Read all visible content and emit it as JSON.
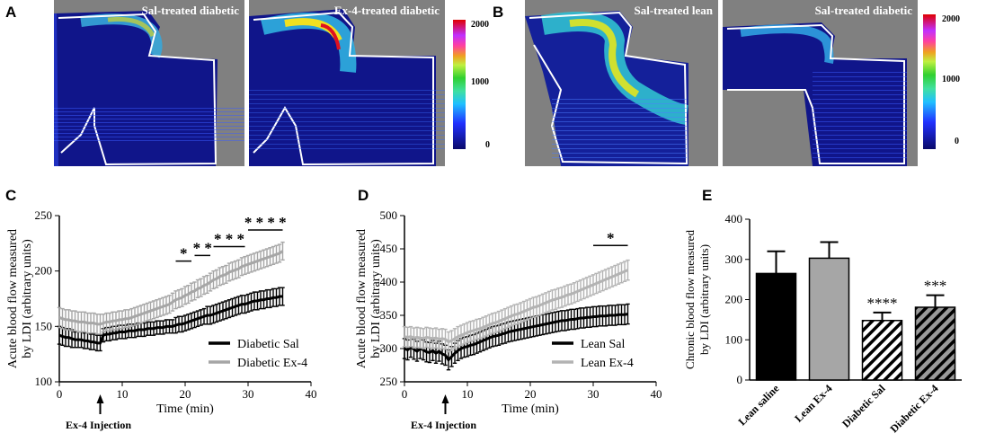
{
  "panel_letters": {
    "a": "A",
    "b": "B",
    "c": "C",
    "d": "D",
    "e": "E"
  },
  "images": {
    "a_left": "Sal-treated diabetic",
    "a_right": "Ex-4-treated diabetic",
    "b_left": "Sal-treated lean",
    "b_right": "Sal-treated diabetic"
  },
  "colorbar": {
    "max_label": "2000",
    "mid_label": "1000",
    "min_label": "0"
  },
  "chart_data": [
    {
      "id": "C",
      "type": "line",
      "xlabel": "Time (min)",
      "ylabel_lines": [
        "Acute blood flow measured",
        "by LDI (arbitrary units)"
      ],
      "xlim": [
        0,
        40
      ],
      "ylim": [
        100,
        250
      ],
      "xticks": [
        "0",
        "10",
        "20",
        "30",
        "40"
      ],
      "yticks": [
        "100",
        "150",
        "200",
        "250"
      ],
      "annotation": "Ex-4 Injection",
      "annotation_x": 6.5,
      "legend": [
        "Diabetic Sal",
        "Diabetic Ex-4"
      ],
      "significance": [
        {
          "label": "*",
          "x1": 18.5,
          "x2": 21,
          "y": 209
        },
        {
          "label": "* *",
          "x1": 21.5,
          "x2": 24,
          "y": 214
        },
        {
          "label": "* * *",
          "x1": 24.5,
          "x2": 29.5,
          "y": 222
        },
        {
          "label": "* * * *",
          "x1": 30,
          "x2": 35.5,
          "y": 237
        }
      ],
      "series": [
        {
          "name": "Diabetic Sal",
          "color": "#000000",
          "x": [
            0,
            0.5,
            1,
            1.5,
            2,
            2.5,
            3,
            3.5,
            4,
            4.5,
            5,
            5.5,
            6,
            6.5,
            7,
            7.5,
            8,
            8.5,
            9,
            9.5,
            10,
            10.5,
            11,
            11.5,
            12,
            12.5,
            13,
            13.5,
            14,
            14.5,
            15,
            15.5,
            16,
            16.5,
            17,
            17.5,
            18,
            18.5,
            19,
            19.5,
            20,
            20.5,
            21,
            21.5,
            22,
            22.5,
            23,
            23.5,
            24,
            24.5,
            25,
            25.5,
            26,
            26.5,
            27,
            27.5,
            28,
            28.5,
            29,
            29.5,
            30,
            30.5,
            31,
            31.5,
            32,
            32.5,
            33,
            33.5,
            34,
            34.5,
            35,
            35.5
          ],
          "y": [
            142,
            141,
            140,
            140,
            139,
            138,
            138,
            138,
            137,
            137,
            136,
            136,
            135,
            135,
            142,
            143,
            143,
            144,
            144,
            145,
            145,
            145,
            146,
            146,
            146,
            147,
            147,
            147,
            148,
            148,
            148,
            149,
            149,
            149,
            150,
            150,
            150,
            151,
            152,
            152,
            153,
            154,
            155,
            156,
            157,
            158,
            159,
            160,
            160,
            161,
            162,
            163,
            164,
            165,
            166,
            167,
            168,
            169,
            170,
            170,
            171,
            172,
            173,
            173,
            174,
            174,
            175,
            175,
            176,
            176,
            177,
            177
          ],
          "err": [
            8,
            8,
            8,
            8,
            8,
            7,
            7,
            7,
            7,
            7,
            7,
            7,
            7,
            7,
            6,
            6,
            6,
            6,
            6,
            6,
            6,
            6,
            6,
            6,
            6,
            6,
            6,
            6,
            6,
            6,
            6,
            6,
            6,
            6,
            6,
            6,
            6,
            7,
            7,
            7,
            7,
            7,
            7,
            7,
            7,
            7,
            7,
            8,
            8,
            8,
            8,
            8,
            8,
            8,
            8,
            8,
            8,
            8,
            8,
            8,
            8,
            8,
            8,
            8,
            8,
            8,
            8,
            8,
            8,
            8,
            8,
            8
          ]
        },
        {
          "name": "Diabetic Ex-4",
          "color": "#a6a6a6",
          "x": [
            0,
            0.5,
            1,
            1.5,
            2,
            2.5,
            3,
            3.5,
            4,
            4.5,
            5,
            5.5,
            6,
            6.5,
            7,
            7.5,
            8,
            8.5,
            9,
            9.5,
            10,
            10.5,
            11,
            11.5,
            12,
            12.5,
            13,
            13.5,
            14,
            14.5,
            15,
            15.5,
            16,
            16.5,
            17,
            17.5,
            18,
            18.5,
            19,
            19.5,
            20,
            20.5,
            21,
            21.5,
            22,
            22.5,
            23,
            23.5,
            24,
            24.5,
            25,
            25.5,
            26,
            26.5,
            27,
            27.5,
            28,
            28.5,
            29,
            29.5,
            30,
            30.5,
            31,
            31.5,
            32,
            32.5,
            33,
            33.5,
            34,
            34.5,
            35,
            35.5
          ],
          "y": [
            158,
            157,
            156,
            156,
            155,
            155,
            154,
            154,
            154,
            153,
            153,
            153,
            152,
            152,
            153,
            154,
            154,
            155,
            155,
            156,
            156,
            157,
            157,
            158,
            159,
            160,
            161,
            162,
            163,
            164,
            165,
            166,
            167,
            168,
            169,
            170,
            172,
            174,
            175,
            176,
            178,
            179,
            181,
            182,
            184,
            185,
            187,
            188,
            190,
            192,
            193,
            195,
            196,
            197,
            199,
            200,
            201,
            202,
            204,
            205,
            206,
            207,
            208,
            209,
            210,
            211,
            212,
            213,
            214,
            215,
            216,
            218
          ],
          "err": [
            9,
            9,
            9,
            9,
            9,
            9,
            9,
            9,
            9,
            9,
            9,
            9,
            9,
            9,
            8,
            8,
            8,
            8,
            8,
            8,
            8,
            8,
            8,
            8,
            8,
            8,
            8,
            8,
            8,
            8,
            8,
            8,
            8,
            8,
            8,
            8,
            8,
            8,
            8,
            8,
            8,
            8,
            8,
            8,
            8,
            8,
            8,
            8,
            8,
            8,
            8,
            8,
            8,
            8,
            8,
            8,
            8,
            8,
            8,
            8,
            8,
            8,
            8,
            8,
            8,
            8,
            8,
            8,
            8,
            8,
            8,
            8
          ]
        }
      ]
    },
    {
      "id": "D",
      "type": "line",
      "xlabel": "Time (min)",
      "ylabel_lines": [
        "Acute blood flow measured",
        "by LDI (arbitrary units)"
      ],
      "xlim": [
        0,
        40
      ],
      "ylim": [
        250,
        500
      ],
      "xticks": [
        "0",
        "10",
        "20",
        "30",
        "40"
      ],
      "yticks": [
        "250",
        "300",
        "350",
        "400",
        "450",
        "500"
      ],
      "annotation": "Ex-4 Injection",
      "annotation_x": 6.5,
      "legend": [
        "Lean Sal",
        "Lean Ex-4"
      ],
      "significance": [
        {
          "label": "*",
          "x1": 30,
          "x2": 35.5,
          "y": 455
        }
      ],
      "series": [
        {
          "name": "Lean Sal",
          "color": "#000000",
          "x": [
            0,
            0.5,
            1,
            1.5,
            2,
            2.5,
            3,
            3.5,
            4,
            4.5,
            5,
            5.5,
            6,
            6.5,
            7,
            7.5,
            8,
            8.5,
            9,
            9.5,
            10,
            10.5,
            11,
            11.5,
            12,
            12.5,
            13,
            13.5,
            14,
            14.5,
            15,
            15.5,
            16,
            16.5,
            17,
            17.5,
            18,
            18.5,
            19,
            19.5,
            20,
            20.5,
            21,
            21.5,
            22,
            22.5,
            23,
            23.5,
            24,
            24.5,
            25,
            25.5,
            26,
            26.5,
            27,
            27.5,
            28,
            28.5,
            29,
            29.5,
            30,
            30.5,
            31,
            31.5,
            32,
            32.5,
            33,
            33.5,
            34,
            34.5,
            35,
            35.5
          ],
          "y": [
            300,
            298,
            302,
            299,
            296,
            300,
            298,
            295,
            294,
            297,
            293,
            296,
            292,
            290,
            283,
            288,
            293,
            297,
            300,
            302,
            303,
            305,
            306,
            308,
            310,
            312,
            314,
            316,
            318,
            319,
            320,
            322,
            323,
            325,
            326,
            327,
            328,
            329,
            330,
            331,
            332,
            333,
            334,
            335,
            336,
            337,
            338,
            339,
            340,
            341,
            342,
            342,
            343,
            344,
            344,
            345,
            346,
            346,
            347,
            347,
            348,
            348,
            349,
            349,
            349,
            350,
            350,
            350,
            351,
            351,
            351,
            352
          ]
        },
        {
          "name": "Lean Ex-4",
          "color": "#b3b3b3",
          "x": [
            0,
            0.5,
            1,
            1.5,
            2,
            2.5,
            3,
            3.5,
            4,
            4.5,
            5,
            5.5,
            6,
            6.5,
            7,
            7.5,
            8,
            8.5,
            9,
            9.5,
            10,
            10.5,
            11,
            11.5,
            12,
            12.5,
            13,
            13.5,
            14,
            14.5,
            15,
            15.5,
            16,
            16.5,
            17,
            17.5,
            18,
            18.5,
            19,
            19.5,
            20,
            20.5,
            21,
            21.5,
            22,
            22.5,
            23,
            23.5,
            24,
            24.5,
            25,
            25.5,
            26,
            26.5,
            27,
            27.5,
            28,
            28.5,
            29,
            29.5,
            30,
            30.5,
            31,
            31.5,
            32,
            32.5,
            33,
            33.5,
            34,
            34.5,
            35,
            35.5
          ],
          "y": [
            318,
            317,
            318,
            316,
            317,
            316,
            315,
            317,
            316,
            315,
            316,
            314,
            315,
            314,
            310,
            312,
            315,
            318,
            320,
            322,
            324,
            326,
            327,
            329,
            330,
            332,
            334,
            336,
            338,
            339,
            341,
            343,
            345,
            347,
            349,
            351,
            352,
            354,
            356,
            358,
            360,
            362,
            363,
            365,
            367,
            369,
            371,
            373,
            374,
            376,
            377,
            379,
            381,
            382,
            384,
            386,
            388,
            390,
            392,
            394,
            396,
            398,
            400,
            402,
            404,
            406,
            408,
            410,
            412,
            414,
            416,
            418
          ]
        }
      ],
      "error_sizes": {
        "Lean Sal": 15,
        "Lean Ex-4": 15
      }
    },
    {
      "id": "E",
      "type": "bar",
      "ylabel_lines": [
        "Chronic blood flow measured",
        "by LDI (arbitrary units)"
      ],
      "ylim": [
        0,
        400
      ],
      "yticks": [
        "0",
        "100",
        "200",
        "300",
        "400"
      ],
      "categories": [
        "Lean saline",
        "Lean Ex-4",
        "Diabetic Sal",
        "Diabetic Ex-4"
      ],
      "values": [
        265,
        303,
        148,
        181
      ],
      "errors": [
        55,
        40,
        20,
        30
      ],
      "fills": [
        "#000000",
        "#a6a6a6",
        "hatch-white",
        "hatch-gray"
      ],
      "stars": [
        "",
        "",
        "****",
        "***"
      ]
    }
  ]
}
